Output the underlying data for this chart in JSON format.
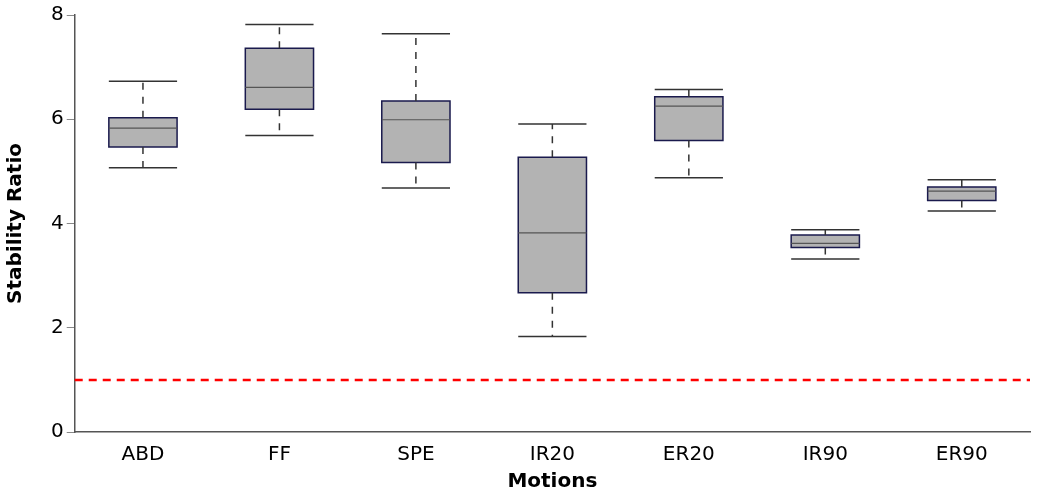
{
  "chart_data": {
    "type": "box",
    "xlabel": "Motions",
    "ylabel": "Stability Ratio",
    "categories": [
      "ABD",
      "FF",
      "SPE",
      "IR20",
      "ER20",
      "IR90",
      "ER90"
    ],
    "color": "#b3b3b3",
    "boxes": [
      {
        "low": 5.07,
        "q1": 5.47,
        "median": 5.83,
        "q3": 6.03,
        "high": 6.73
      },
      {
        "low": 5.69,
        "q1": 6.19,
        "median": 6.61,
        "q3": 7.36,
        "high": 7.82
      },
      {
        "low": 4.68,
        "q1": 5.17,
        "median": 5.99,
        "q3": 6.35,
        "high": 7.64
      },
      {
        "low": 1.83,
        "q1": 2.67,
        "median": 3.82,
        "q3": 5.27,
        "high": 5.91
      },
      {
        "low": 4.88,
        "q1": 5.59,
        "median": 6.25,
        "q3": 6.43,
        "high": 6.57
      },
      {
        "low": 3.32,
        "q1": 3.54,
        "median": 3.62,
        "q3": 3.78,
        "high": 3.88
      },
      {
        "low": 4.24,
        "q1": 4.44,
        "median": 4.62,
        "q3": 4.7,
        "high": 4.84
      }
    ],
    "ylim": [
      0,
      8
    ],
    "yticks": [
      0,
      2,
      4,
      6,
      8
    ],
    "ref_lines": [
      {
        "axis": "y",
        "value": 1,
        "color": "#ff0000",
        "line_style": "dashed"
      }
    ],
    "grid": false,
    "legend": false
  }
}
